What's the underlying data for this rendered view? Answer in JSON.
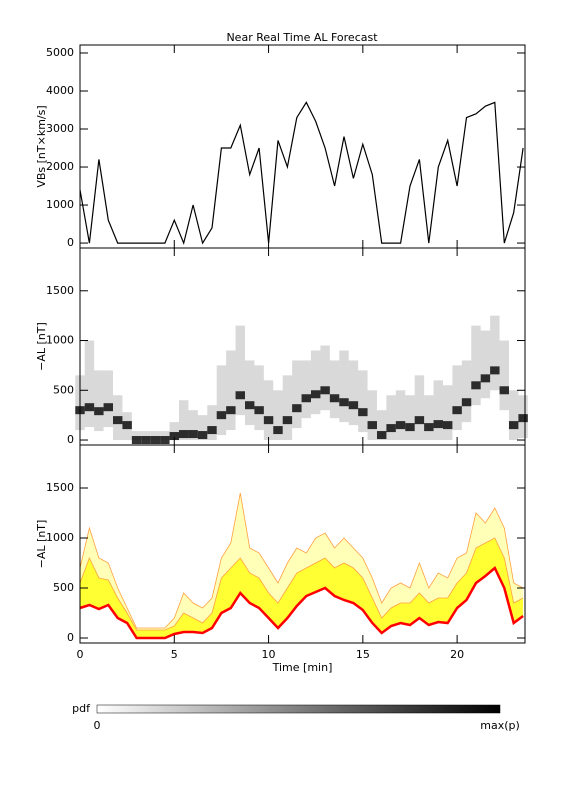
{
  "chart_data": [
    {
      "type": "line",
      "title": "Near Real Time AL Forecast",
      "ylabel": "VBs [nT×km/s]",
      "color": "#000000",
      "x": [
        0,
        0.5,
        1,
        1.5,
        2,
        2.5,
        3,
        3.5,
        4,
        4.5,
        5,
        5.5,
        6,
        6.5,
        7,
        7.5,
        8,
        8.5,
        9,
        9.5,
        10,
        10.5,
        11,
        11.5,
        12,
        12.5,
        13,
        13.5,
        14,
        14.5,
        15,
        15.5,
        16,
        16.5,
        17,
        17.5,
        18,
        18.5,
        19,
        19.5,
        20,
        20.5,
        21,
        21.5,
        22,
        22.5,
        23,
        23.5
      ],
      "values": [
        1400,
        0,
        2200,
        600,
        0,
        0,
        0,
        0,
        0,
        0,
        600,
        0,
        1000,
        0,
        400,
        2500,
        2500,
        3100,
        1800,
        2500,
        0,
        2700,
        2000,
        3300,
        3700,
        3200,
        2500,
        1500,
        2800,
        1700,
        2600,
        1800,
        0,
        0,
        0,
        1500,
        2200,
        0,
        2000,
        2700,
        1500,
        3300,
        3400,
        3600,
        3700,
        0,
        800,
        2500
      ],
      "xlim": [
        0,
        23.6
      ],
      "xticks": [
        0,
        5,
        10,
        15,
        20
      ],
      "ylim": [
        -130,
        5210
      ],
      "yticks": [
        0,
        1000,
        2000,
        3000,
        4000,
        5000
      ]
    },
    {
      "type": "pdf",
      "ylabel": "−AL [nT]",
      "x": [
        0,
        0.5,
        1,
        1.5,
        2,
        2.5,
        3,
        3.5,
        4,
        4.5,
        5,
        5.5,
        6,
        6.5,
        7,
        7.5,
        8,
        8.5,
        9,
        9.5,
        10,
        10.5,
        11,
        11.5,
        12,
        12.5,
        13,
        13.5,
        14,
        14.5,
        15,
        15.5,
        16,
        16.5,
        17,
        17.5,
        18,
        18.5,
        19,
        19.5,
        20,
        20.5,
        21,
        21.5,
        22,
        22.5,
        23,
        23.5
      ],
      "low": [
        100,
        130,
        90,
        130,
        0,
        0,
        0,
        0,
        0,
        0,
        0,
        0,
        0,
        0,
        0,
        50,
        100,
        250,
        150,
        100,
        0,
        0,
        0,
        120,
        220,
        260,
        300,
        220,
        180,
        150,
        80,
        0,
        0,
        0,
        0,
        0,
        0,
        0,
        0,
        0,
        100,
        180,
        350,
        420,
        500,
        300,
        0,
        20
      ],
      "mode": [
        300,
        330,
        290,
        330,
        200,
        150,
        0,
        0,
        0,
        0,
        40,
        60,
        60,
        50,
        100,
        250,
        300,
        450,
        350,
        300,
        200,
        100,
        200,
        320,
        420,
        460,
        500,
        420,
        380,
        350,
        280,
        150,
        50,
        120,
        150,
        130,
        200,
        130,
        160,
        150,
        300,
        380,
        550,
        620,
        700,
        500,
        150,
        220
      ],
      "high": [
        650,
        1000,
        700,
        700,
        450,
        280,
        90,
        90,
        90,
        90,
        180,
        400,
        300,
        250,
        350,
        750,
        900,
        1150,
        800,
        750,
        600,
        500,
        650,
        800,
        800,
        900,
        950,
        800,
        900,
        800,
        700,
        500,
        300,
        450,
        500,
        450,
        650,
        450,
        600,
        550,
        750,
        800,
        1150,
        1100,
        1250,
        1000,
        500,
        450
      ],
      "color": "#000000",
      "xlim": [
        0,
        23.6
      ],
      "xticks": [
        0,
        5,
        10,
        15,
        20
      ],
      "ylim": [
        -50,
        1930
      ],
      "yticks": [
        0,
        500,
        1000,
        1500
      ]
    },
    {
      "type": "band",
      "ylabel": "−AL [nT]",
      "xlabel": "Time [min]",
      "x": [
        0,
        0.5,
        1,
        1.5,
        2,
        2.5,
        3,
        3.5,
        4,
        4.5,
        5,
        5.5,
        6,
        6.5,
        7,
        7.5,
        8,
        8.5,
        9,
        9.5,
        10,
        10.5,
        11,
        11.5,
        12,
        12.5,
        13,
        13.5,
        14,
        14.5,
        15,
        15.5,
        16,
        16.5,
        17,
        17.5,
        18,
        18.5,
        19,
        19.5,
        20,
        20.5,
        21,
        21.5,
        22,
        22.5,
        23,
        23.5
      ],
      "median": [
        300,
        330,
        290,
        330,
        200,
        150,
        0,
        0,
        0,
        0,
        40,
        60,
        60,
        50,
        100,
        250,
        300,
        450,
        350,
        300,
        200,
        100,
        200,
        320,
        420,
        460,
        500,
        420,
        380,
        350,
        280,
        150,
        50,
        120,
        150,
        130,
        200,
        130,
        160,
        150,
        300,
        380,
        550,
        620,
        700,
        500,
        150,
        220
      ],
      "upper": [
        550,
        800,
        600,
        580,
        400,
        250,
        80,
        80,
        80,
        80,
        120,
        250,
        200,
        150,
        250,
        600,
        700,
        800,
        650,
        600,
        450,
        350,
        500,
        650,
        700,
        750,
        800,
        700,
        750,
        700,
        600,
        400,
        200,
        300,
        350,
        350,
        450,
        350,
        400,
        400,
        550,
        650,
        900,
        950,
        1000,
        800,
        350,
        400
      ],
      "max": [
        700,
        1100,
        800,
        750,
        500,
        300,
        100,
        100,
        100,
        100,
        200,
        450,
        350,
        300,
        400,
        800,
        950,
        1450,
        900,
        850,
        700,
        550,
        750,
        900,
        850,
        1000,
        1050,
        900,
        1000,
        900,
        800,
        600,
        350,
        500,
        550,
        500,
        750,
        500,
        650,
        600,
        800,
        850,
        1250,
        1150,
        1300,
        1100,
        550,
        500
      ],
      "median_color": "#ff0000",
      "band_color": "#ffff33",
      "max_color": "#ffa040",
      "xlim": [
        0,
        23.6
      ],
      "xticks": [
        0,
        5,
        10,
        15,
        20
      ],
      "ylim": [
        -50,
        1930
      ],
      "yticks": [
        0,
        500,
        1000,
        1500
      ]
    }
  ],
  "colorbar": {
    "title": "pdf",
    "min": 0,
    "max_label": "max(p)"
  }
}
